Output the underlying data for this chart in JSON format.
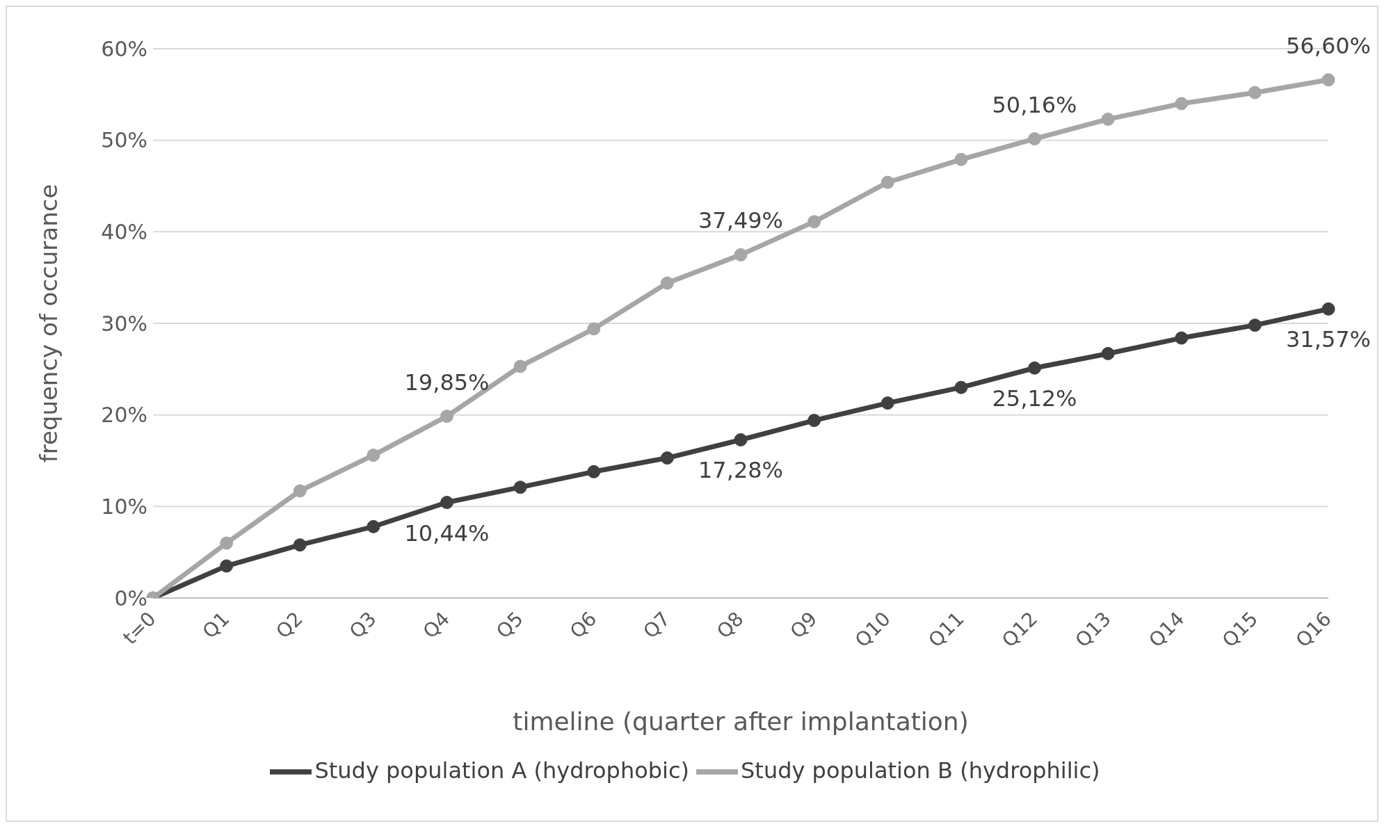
{
  "chart_data": {
    "type": "line",
    "xlabel": "timeline (quarter after implantation)",
    "ylabel": "frequency of occurance",
    "categories": [
      "t=0",
      "Q1",
      "Q2",
      "Q3",
      "Q4",
      "Q5",
      "Q6",
      "Q7",
      "Q8",
      "Q9",
      "Q10",
      "Q11",
      "Q12",
      "Q13",
      "Q14",
      "Q15",
      "Q16"
    ],
    "series": [
      {
        "name": "Study population A (hydrophobic)",
        "color": "#404040",
        "values": [
          0,
          3.5,
          5.8,
          7.8,
          10.44,
          12.1,
          13.8,
          15.3,
          17.28,
          19.4,
          21.3,
          23.0,
          25.12,
          26.7,
          28.4,
          29.8,
          31.57
        ],
        "value_labels": [
          null,
          null,
          null,
          null,
          "10,44%",
          null,
          null,
          null,
          "17,28%",
          null,
          null,
          null,
          "25,12%",
          null,
          null,
          null,
          "31,57%"
        ]
      },
      {
        "name": "Study population B (hydrophilic)",
        "color": "#a6a6a6",
        "values": [
          0,
          6.0,
          11.7,
          15.6,
          19.85,
          25.3,
          29.4,
          34.4,
          37.49,
          41.1,
          45.4,
          47.9,
          50.16,
          52.3,
          54.0,
          55.2,
          56.6
        ],
        "value_labels": [
          null,
          null,
          null,
          null,
          "19,85%",
          null,
          null,
          null,
          "37,49%",
          null,
          null,
          null,
          "50,16%",
          null,
          null,
          null,
          "56,60%"
        ]
      }
    ],
    "ylim": [
      0,
      60
    ],
    "yticks": [
      {
        "value": 0,
        "label": "0%"
      },
      {
        "value": 10,
        "label": "10%"
      },
      {
        "value": 20,
        "label": "20%"
      },
      {
        "value": 30,
        "label": "30%"
      },
      {
        "value": 40,
        "label": "40%"
      },
      {
        "value": 50,
        "label": "50%"
      },
      {
        "value": 60,
        "label": "60%"
      }
    ],
    "grid": "y",
    "legend": "bottom",
    "marker": "circle",
    "line_style": "solid"
  }
}
